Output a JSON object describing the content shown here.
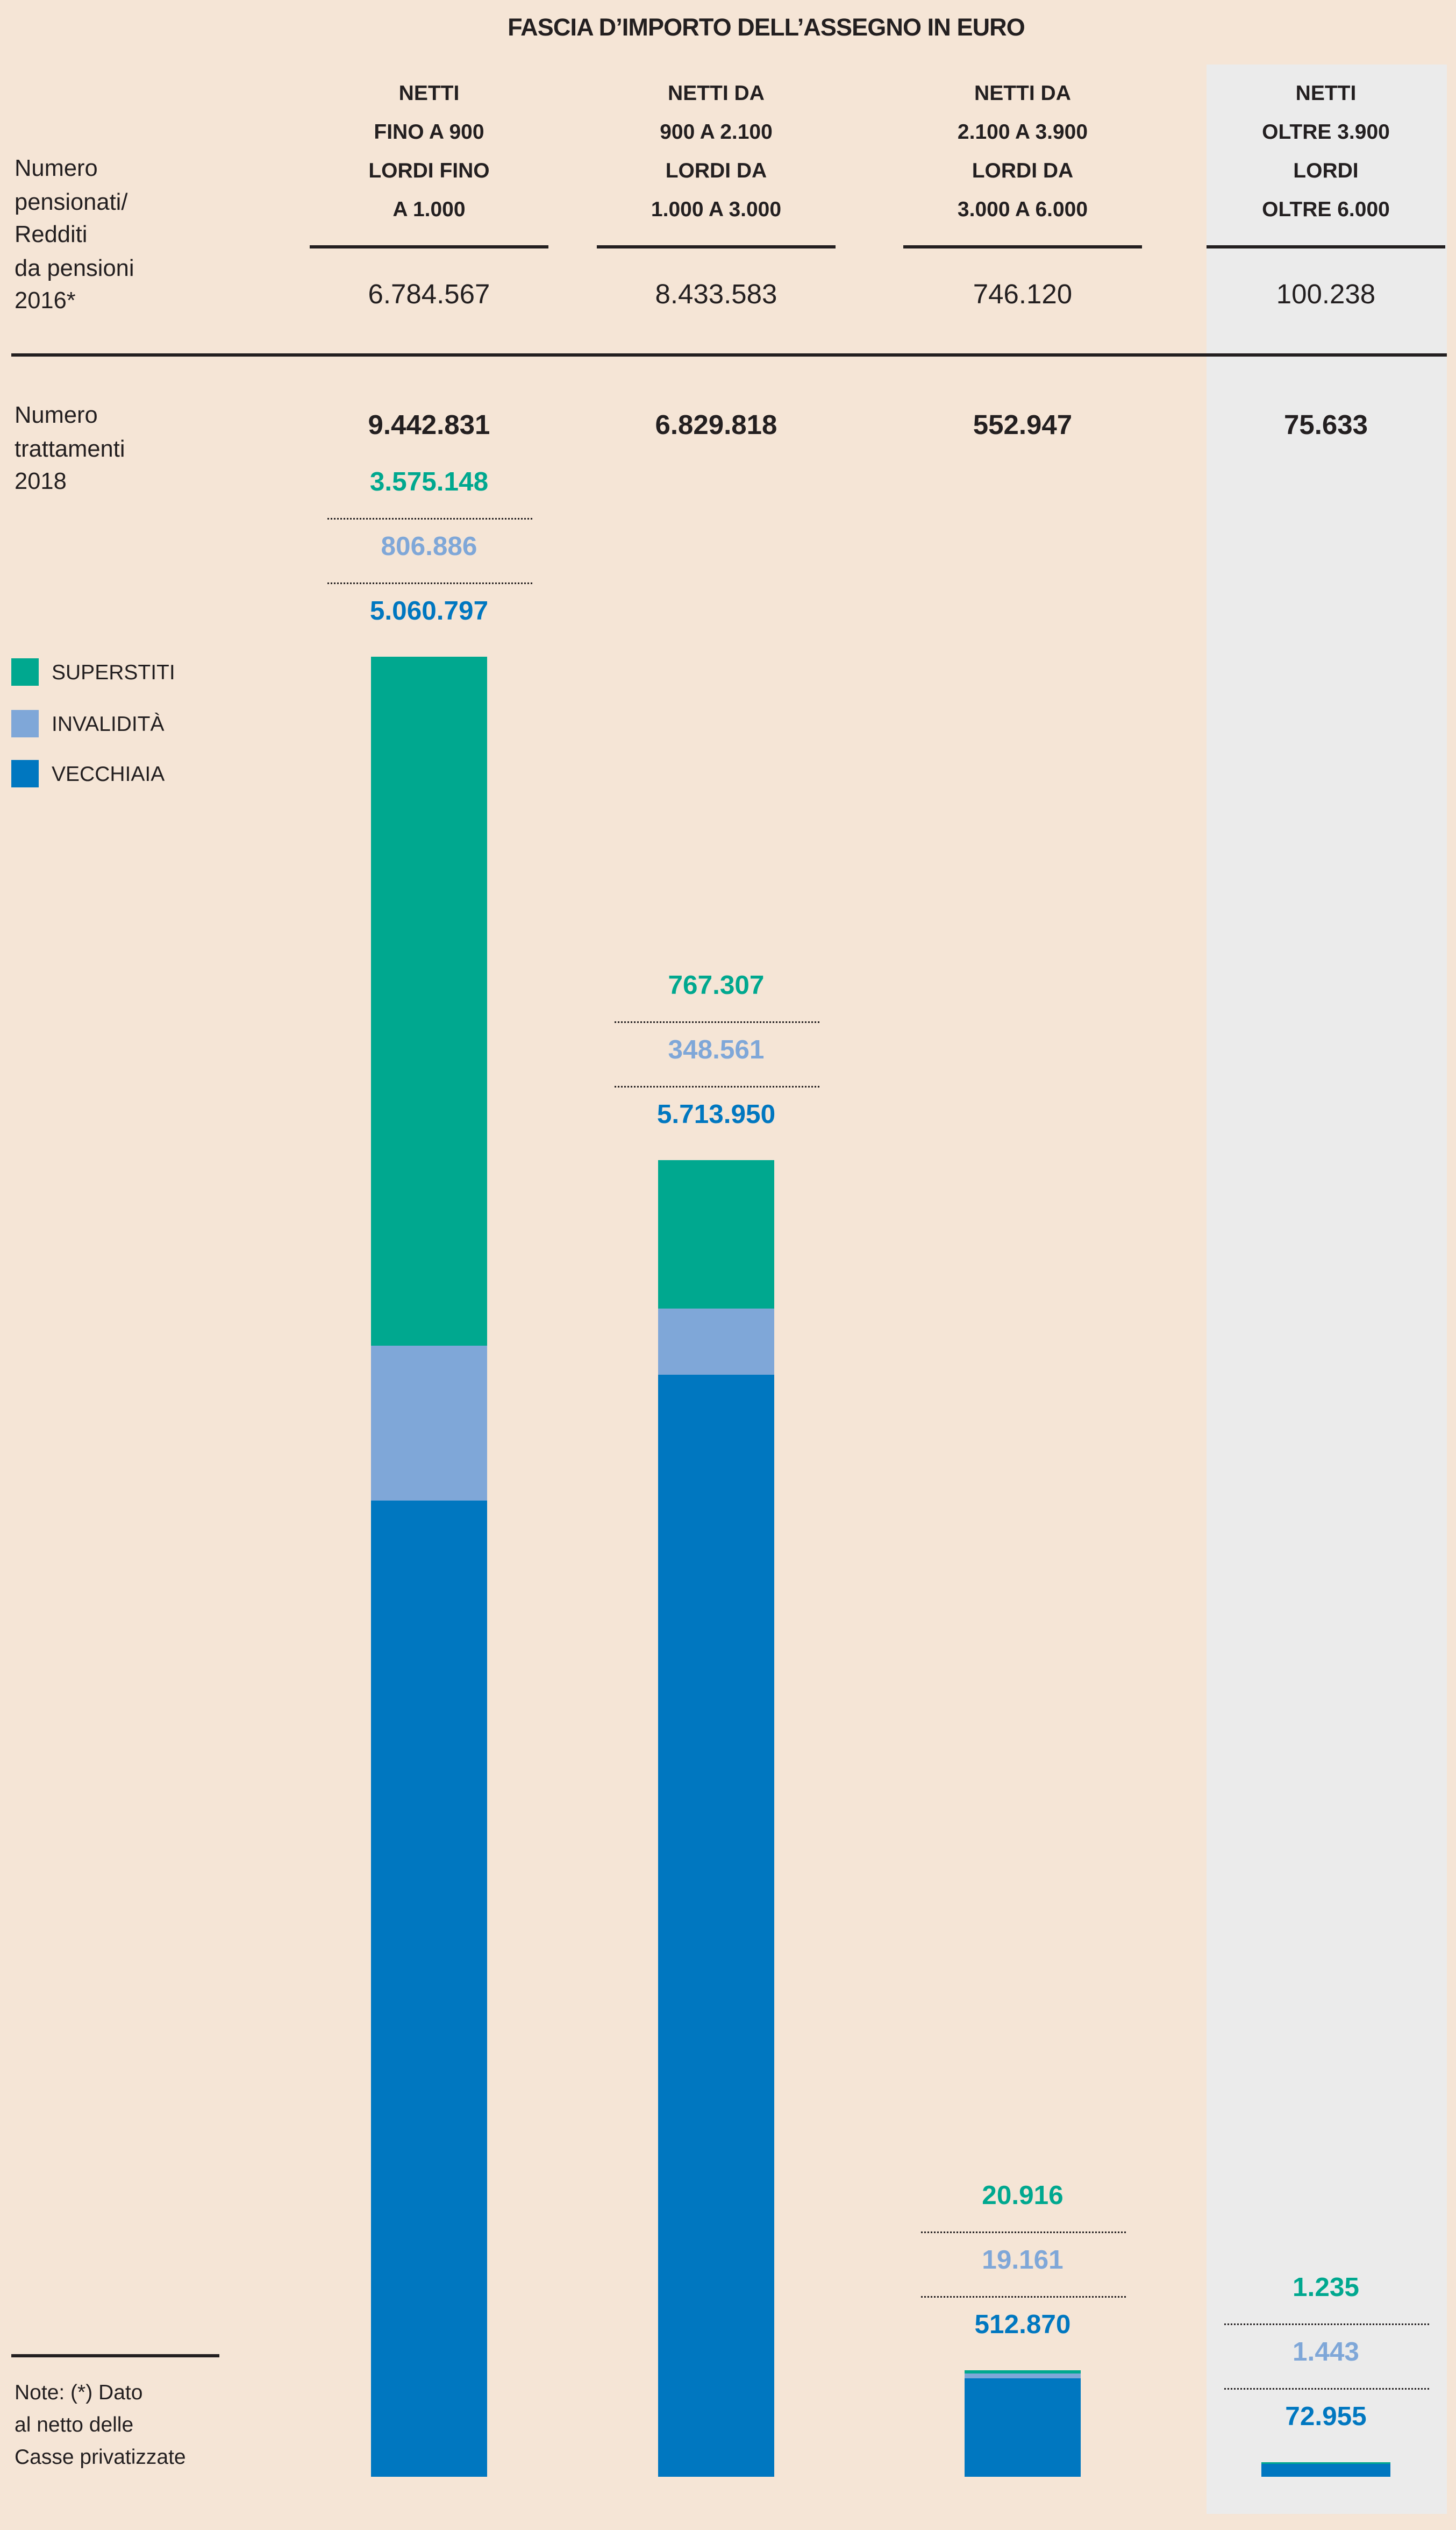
{
  "chart_data": {
    "type": "bar",
    "stacked": true,
    "title": "FASCIA D’IMPORTO DELL’ASSEGNO IN EURO",
    "row_labels": {
      "pensionati": [
        "Numero",
        "pensionati/",
        "Redditi",
        "da pensioni",
        "2016*"
      ],
      "trattamenti": [
        "Numero",
        "trattamenti",
        "2018"
      ]
    },
    "categories": [
      [
        "NETTI",
        "FINO A 900",
        "LORDI FINO",
        "A 1.000"
      ],
      [
        "NETTI DA",
        "900 A 2.100",
        "LORDI  DA",
        "1.000 A 3.000"
      ],
      [
        "NETTI DA",
        "2.100 A 3.900",
        "LORDI DA",
        "3.000 A 6.000"
      ],
      [
        "NETTI",
        "OLTRE 3.900",
        "LORDI",
        "OLTRE 6.000"
      ]
    ],
    "pensionati_2016": [
      "6.784.567",
      "8.433.583",
      "746.120",
      "100.238"
    ],
    "totals_2018": [
      "9.442.831",
      "6.829.818",
      "552.947",
      "75.633"
    ],
    "total_values": [
      9442831,
      6829818,
      552947,
      75633
    ],
    "series": [
      {
        "name": "SUPERSTITI",
        "color": "#00a88f",
        "values": [
          3575148,
          767307,
          20916,
          1235
        ],
        "labels": [
          "3.575.148",
          "767.307",
          "20.916",
          "1.235"
        ]
      },
      {
        "name": "INVALIDITÀ",
        "color": "#7fa7d8",
        "values": [
          806886,
          348561,
          19161,
          1443
        ],
        "labels": [
          "806.886",
          "348.561",
          "19.161",
          "1.443"
        ]
      },
      {
        "name": "VECCHIAIA",
        "color": "#0077c0",
        "values": [
          5060797,
          5713950,
          512870,
          72955
        ],
        "labels": [
          "5.060.797",
          "5.713.950",
          "512.870",
          "72.955"
        ]
      }
    ],
    "highlighted_category_index": 3,
    "ylim": [
      0,
      9442831
    ],
    "note": [
      "Note: (*) Dato",
      "al netto delle",
      "Casse privatizzate"
    ]
  }
}
